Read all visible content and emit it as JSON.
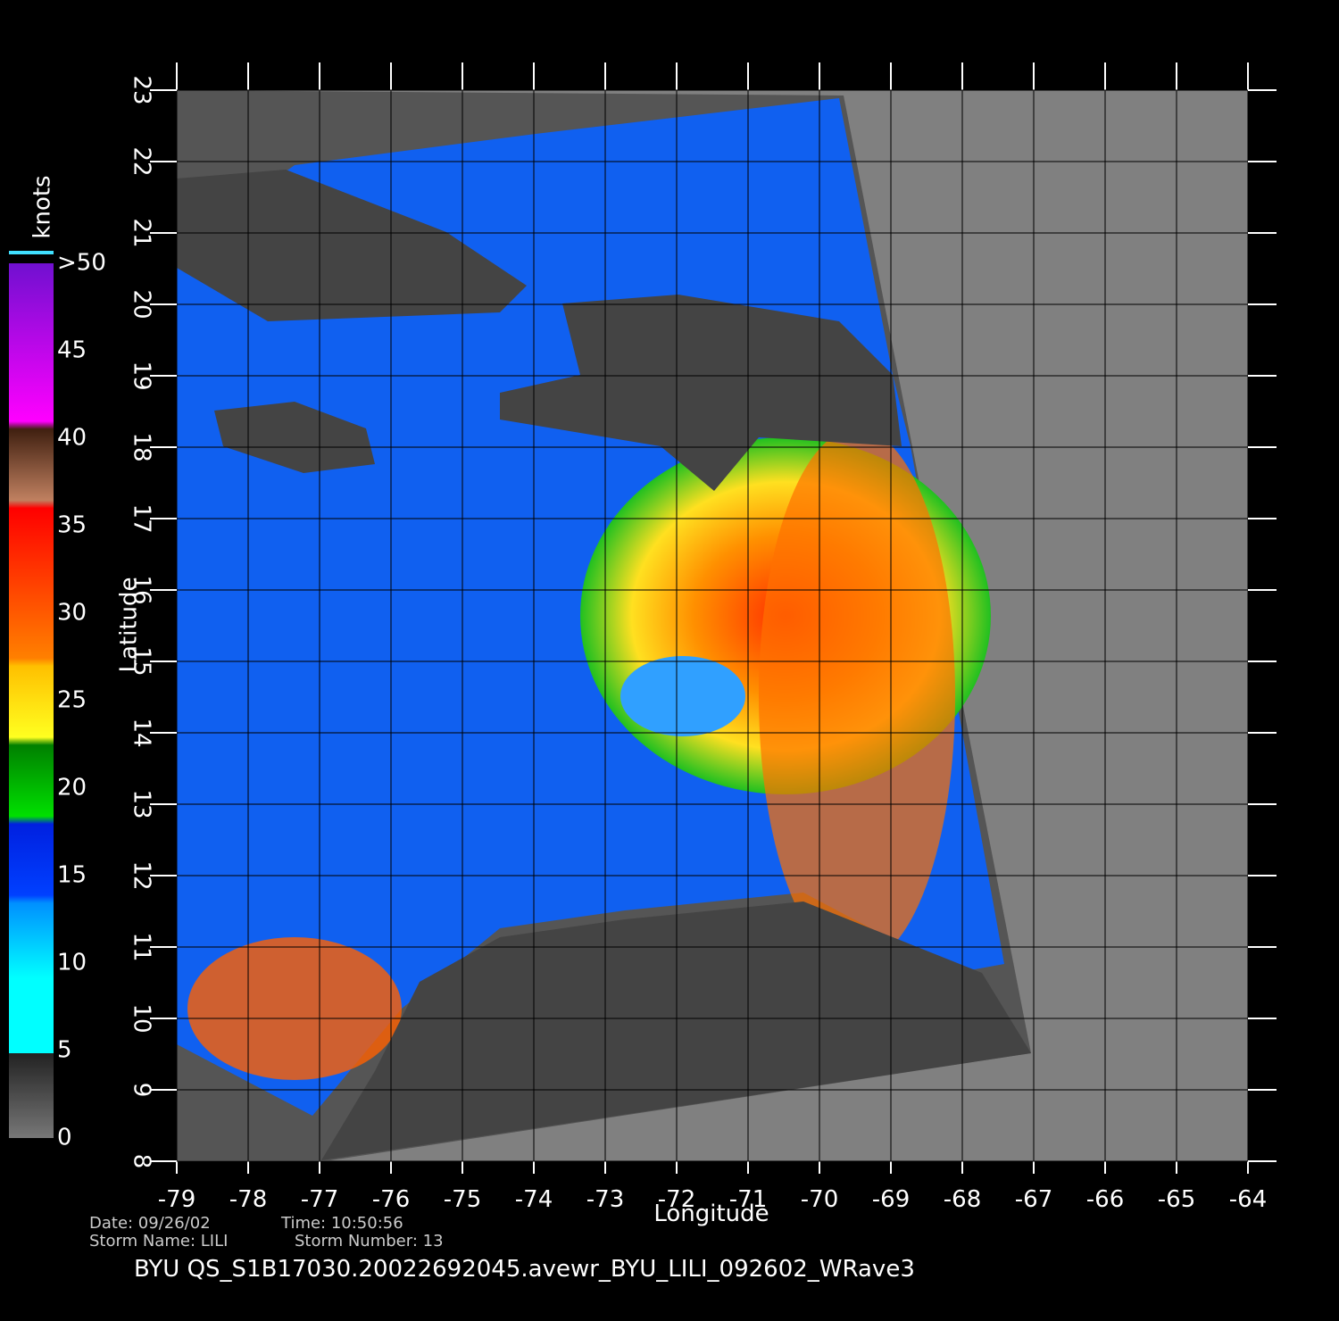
{
  "chart_data": {
    "type": "map",
    "xlabel": "Longitude",
    "ylabel": "Latitude",
    "xlim": [
      -79,
      -64
    ],
    "ylim": [
      8,
      23
    ],
    "xticks": [
      -79,
      -78,
      -77,
      -76,
      -75,
      -74,
      -73,
      -72,
      -71,
      -70,
      -69,
      -68,
      -67,
      -66,
      -65,
      -64
    ],
    "yticks": [
      8,
      9,
      10,
      11,
      12,
      13,
      14,
      15,
      16,
      17,
      18,
      19,
      20,
      21,
      22,
      23
    ],
    "grid": true,
    "colorbar": {
      "title": "knots",
      "ticks": [
        0,
        5,
        10,
        15,
        20,
        25,
        30,
        35,
        40,
        45,
        {
          "value": 50,
          "label": ">50"
        }
      ]
    },
    "footer": {
      "date": "Date: 09/26/02",
      "time": "Time: 10:50:56",
      "storm_name": "Storm Name: LILI",
      "storm_number": "Storm Number: 13",
      "file": "BYU QS_S1B17030.20022692045.avewr_BYU_LILI_092602_WRave3"
    }
  }
}
